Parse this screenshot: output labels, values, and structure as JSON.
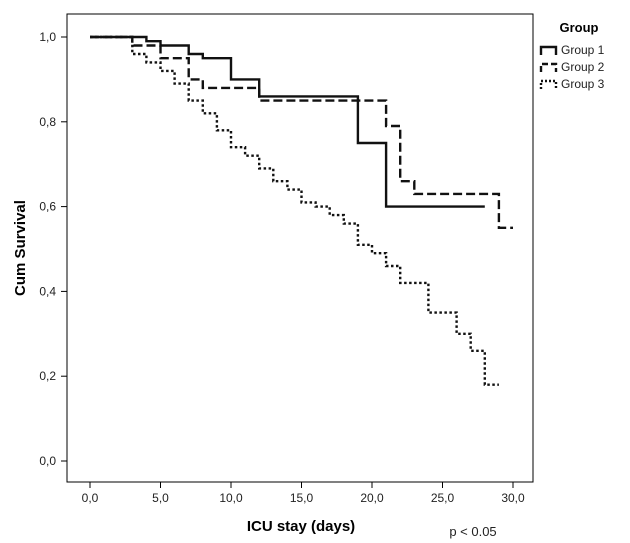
{
  "chart_data": {
    "type": "line",
    "step": true,
    "xlabel": "ICU stay (days)",
    "ylabel": "Cum Survival",
    "xlim": [
      0,
      30
    ],
    "ylim": [
      0,
      1
    ],
    "xticks": [
      "0,0",
      "5,0",
      "10,0",
      "15,0",
      "20,0",
      "25,0",
      "30,0"
    ],
    "xtick_values": [
      0,
      5,
      10,
      15,
      20,
      25,
      30
    ],
    "yticks": [
      "0,0",
      "0,2",
      "0,4",
      "0,6",
      "0,8",
      "1,0"
    ],
    "ytick_values": [
      0,
      0.2,
      0.4,
      0.6,
      0.8,
      1.0
    ],
    "grid": false,
    "legend": {
      "title": "Group",
      "position": "top-right outside"
    },
    "annotation": "p < 0.05",
    "series": [
      {
        "name": "Group 1",
        "line_style": "solid",
        "x": [
          0,
          4,
          5,
          7,
          8,
          10,
          12,
          19,
          21,
          28
        ],
        "y": [
          1.0,
          0.99,
          0.98,
          0.96,
          0.95,
          0.9,
          0.86,
          0.75,
          0.6,
          0.6
        ]
      },
      {
        "name": "Group 2",
        "line_style": "dashed",
        "x": [
          0,
          3,
          5,
          7,
          8,
          12,
          20,
          21,
          22,
          23,
          29,
          30
        ],
        "y": [
          1.0,
          0.98,
          0.95,
          0.9,
          0.88,
          0.85,
          0.85,
          0.79,
          0.66,
          0.63,
          0.55,
          0.55
        ],
        "y_adjust": [
          1.0,
          0.98,
          0.95,
          0.9,
          0.88,
          0.85,
          0.84,
          0.79,
          0.66,
          0.63,
          0.55,
          0.55
        ]
      },
      {
        "name": "Group 3",
        "line_style": "dotted",
        "x": [
          0,
          3,
          4,
          5,
          6,
          7,
          8,
          9,
          10,
          11,
          12,
          13,
          14,
          15,
          16,
          17,
          18,
          19,
          20,
          21,
          22,
          24,
          26,
          27,
          28,
          29
        ],
        "y": [
          1.0,
          0.96,
          0.94,
          0.92,
          0.89,
          0.85,
          0.82,
          0.78,
          0.74,
          0.72,
          0.69,
          0.66,
          0.64,
          0.61,
          0.6,
          0.58,
          0.56,
          0.51,
          0.49,
          0.46,
          0.42,
          0.35,
          0.3,
          0.26,
          0.18,
          0.18
        ]
      }
    ]
  }
}
